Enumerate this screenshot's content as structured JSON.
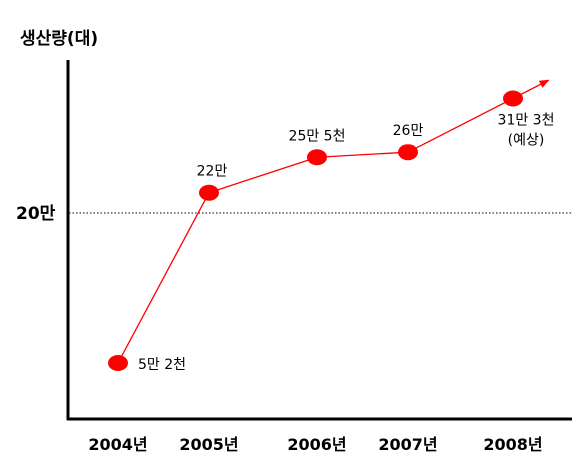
{
  "chart_data": {
    "type": "line",
    "title": "",
    "ylabel": "생산량(대)",
    "xlabel": "",
    "categories": [
      "2004년",
      "2005년",
      "2006년",
      "2007년",
      "2008년"
    ],
    "values": [
      52000,
      220000,
      255000,
      260000,
      313000
    ],
    "data_labels": [
      "5만 2천",
      "22만",
      "25만 5천",
      "26만",
      "31만 3천"
    ],
    "last_point_note": "(예상)",
    "reference_line": {
      "value": 200000,
      "label": "20만",
      "style": "dotted"
    },
    "series_color": "#ff0000",
    "trend_arrow": true,
    "grid": false,
    "legend": "none"
  }
}
